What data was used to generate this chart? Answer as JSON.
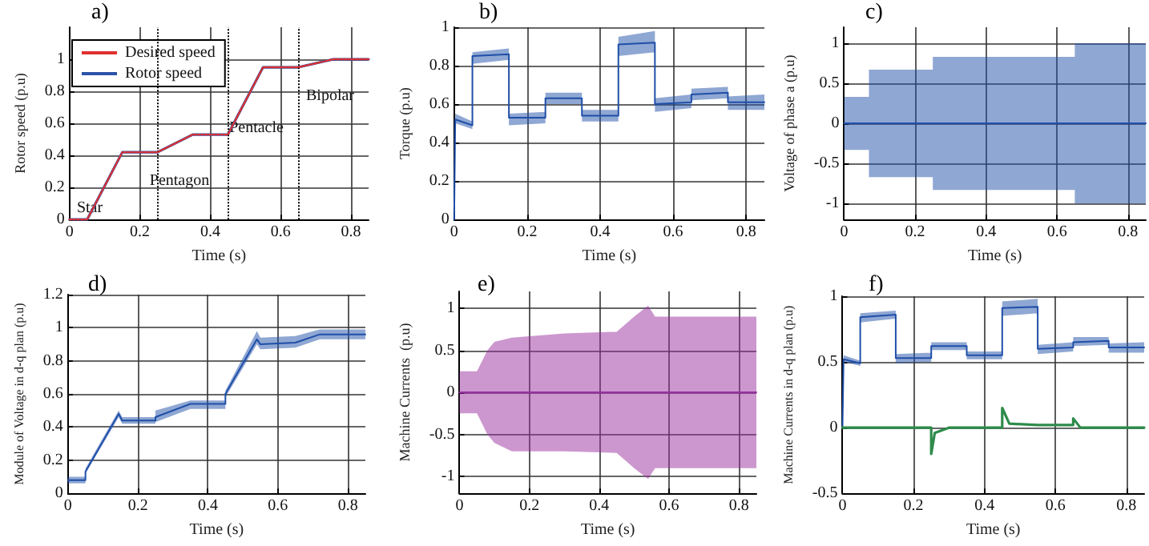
{
  "chart_data": [
    {
      "type": "line",
      "title": "a)",
      "xlabel": "Time (s)",
      "ylabel": "Rotor speed (p.u)",
      "xlim": [
        0,
        0.85
      ],
      "xticks": [
        0,
        0.2,
        0.4,
        0.6,
        0.8
      ],
      "ylim": [
        0,
        1.2
      ],
      "yticks": [
        0,
        0.2,
        0.4,
        0.6,
        0.8,
        1
      ],
      "grid": true,
      "legend": "top left",
      "series": [
        {
          "name": "Desired speed",
          "color": "#e03030",
          "line_style": "dotted",
          "x": [
            0,
            0.05,
            0.15,
            0.25,
            0.35,
            0.45,
            0.55,
            0.65,
            0.75,
            0.85
          ],
          "values": [
            0,
            0,
            0.42,
            0.42,
            0.53,
            0.53,
            0.95,
            0.95,
            1,
            1
          ]
        },
        {
          "name": "Rotor speed",
          "color": "#2a52a8",
          "line_style": "solid",
          "x": [
            0,
            0.05,
            0.15,
            0.25,
            0.35,
            0.45,
            0.55,
            0.65,
            0.75,
            0.85
          ],
          "values": [
            0,
            0,
            0.42,
            0.42,
            0.53,
            0.53,
            0.95,
            0.95,
            1,
            1
          ]
        }
      ],
      "ref_lines": [
        {
          "axis": "x",
          "value": 0.25,
          "color": "#000000",
          "line_style": "dotted"
        },
        {
          "axis": "x",
          "value": 0.45,
          "color": "#000000",
          "line_style": "dotted"
        },
        {
          "axis": "x",
          "value": 0.65,
          "color": "#000000",
          "line_style": "dotted"
        }
      ],
      "annotations": [
        "Star",
        "Pentagon",
        "Pentacle",
        "Bipolar"
      ]
    },
    {
      "type": "line",
      "title": "b)",
      "xlabel": "Time (s)",
      "ylabel": "Torque (p.u)",
      "xlim": [
        0,
        0.85
      ],
      "xticks": [
        0,
        0.2,
        0.4,
        0.6,
        0.8
      ],
      "ylim": [
        0,
        1
      ],
      "yticks": [
        0,
        0.2,
        0.4,
        0.6,
        0.8,
        1
      ],
      "grid": true,
      "series": [
        {
          "color": "#1f4fa8",
          "x": [
            0,
            0.003,
            0.05,
            0.05,
            0.15,
            0.15,
            0.25,
            0.25,
            0.35,
            0.35,
            0.45,
            0.45,
            0.55,
            0.55,
            0.65,
            0.65,
            0.75,
            0.75,
            0.85
          ],
          "values": [
            0,
            0.52,
            0.49,
            0.85,
            0.86,
            0.53,
            0.53,
            0.63,
            0.63,
            0.54,
            0.54,
            0.91,
            0.92,
            0.6,
            0.61,
            0.65,
            0.66,
            0.61,
            0.61
          ],
          "lower": [
            0,
            0.5,
            0.47,
            0.81,
            0.83,
            0.49,
            0.5,
            0.6,
            0.6,
            0.51,
            0.51,
            0.85,
            0.87,
            0.56,
            0.58,
            0.62,
            0.63,
            0.57,
            0.57
          ],
          "upper": [
            0,
            0.55,
            0.51,
            0.87,
            0.89,
            0.55,
            0.56,
            0.66,
            0.66,
            0.57,
            0.57,
            0.95,
            0.98,
            0.63,
            0.65,
            0.68,
            0.69,
            0.64,
            0.65
          ]
        }
      ]
    },
    {
      "type": "line",
      "title": "c)",
      "xlabel": "Time (s)",
      "ylabel": "Voltage of phase a (p.u)",
      "xlim": [
        0,
        0.85
      ],
      "xticks": [
        0,
        0.2,
        0.4,
        0.6,
        0.8
      ],
      "ylim": [
        -1.2,
        1.2
      ],
      "yticks": [
        -1,
        -0.5,
        0,
        0.5,
        1
      ],
      "grid": true,
      "series": [
        {
          "color": "#1f4fa8",
          "x": [
            0,
            0.07,
            0.07,
            0.25,
            0.25,
            0.65,
            0.65,
            0.85
          ],
          "values": [
            0,
            0,
            0,
            0,
            0,
            0,
            0,
            0
          ],
          "lower": [
            -0.33,
            -0.33,
            -0.67,
            -0.67,
            -0.83,
            -0.83,
            -1,
            -1
          ],
          "upper": [
            0.33,
            0.33,
            0.67,
            0.67,
            0.83,
            0.83,
            1,
            1
          ]
        }
      ]
    },
    {
      "type": "line",
      "title": "d)",
      "xlabel": "Time (s)",
      "ylabel": "Module of Voltage in d-q plan (p.u)",
      "xlim": [
        0,
        0.85
      ],
      "xticks": [
        0,
        0.2,
        0.4,
        0.6,
        0.8
      ],
      "ylim": [
        0,
        1.2
      ],
      "yticks": [
        0,
        0.2,
        0.4,
        0.6,
        0.8,
        1,
        1.2
      ],
      "grid": true,
      "series": [
        {
          "color": "#1f4fa8",
          "x": [
            0,
            0.05,
            0.05,
            0.145,
            0.155,
            0.25,
            0.25,
            0.35,
            0.45,
            0.45,
            0.54,
            0.55,
            0.65,
            0.72,
            0.85
          ],
          "values": [
            0.08,
            0.08,
            0.13,
            0.48,
            0.44,
            0.44,
            0.46,
            0.54,
            0.54,
            0.6,
            0.93,
            0.9,
            0.91,
            0.96,
            0.96
          ],
          "lower": [
            0.06,
            0.06,
            0.12,
            0.46,
            0.42,
            0.42,
            0.43,
            0.51,
            0.51,
            0.58,
            0.9,
            0.87,
            0.88,
            0.93,
            0.93
          ],
          "upper": [
            0.1,
            0.1,
            0.15,
            0.5,
            0.46,
            0.46,
            0.5,
            0.56,
            0.56,
            0.62,
            0.98,
            0.94,
            0.95,
            0.99,
            0.99
          ]
        }
      ]
    },
    {
      "type": "line",
      "title": "e)",
      "xlabel": "Time (s)",
      "ylabel": "Machine Currents  (p.u)",
      "xlim": [
        0,
        0.85
      ],
      "xticks": [
        0,
        0.2,
        0.4,
        0.6,
        0.8
      ],
      "ylim": [
        -1.2,
        1.2
      ],
      "yticks": [
        -1,
        -0.5,
        0,
        0.5,
        1
      ],
      "grid": true,
      "series": [
        {
          "color": "#9a2fa0",
          "x": [
            0,
            0.05,
            0.08,
            0.1,
            0.15,
            0.3,
            0.45,
            0.5,
            0.54,
            0.56,
            0.85
          ],
          "values": [
            0,
            0,
            0,
            0,
            0,
            0,
            0,
            0,
            0,
            0,
            0
          ],
          "lower": [
            -0.25,
            -0.25,
            -0.5,
            -0.6,
            -0.7,
            -0.7,
            -0.72,
            -0.9,
            -1.03,
            -0.9,
            -0.9
          ],
          "upper": [
            0.25,
            0.25,
            0.5,
            0.6,
            0.65,
            0.7,
            0.72,
            0.9,
            1.03,
            0.9,
            0.9
          ]
        }
      ]
    },
    {
      "type": "line",
      "title": "f)",
      "xlabel": "Time (s)",
      "ylabel": "Machine Currents in d-q plan (p.u)",
      "xlim": [
        0,
        0.85
      ],
      "xticks": [
        0,
        0.2,
        0.4,
        0.6,
        0.8
      ],
      "ylim": [
        -0.5,
        1
      ],
      "yticks": [
        -0.5,
        0,
        0.5,
        1
      ],
      "grid": true,
      "series": [
        {
          "color": "#1f4fa8",
          "x": [
            0,
            0.003,
            0.05,
            0.05,
            0.15,
            0.15,
            0.25,
            0.25,
            0.35,
            0.35,
            0.45,
            0.45,
            0.55,
            0.55,
            0.65,
            0.65,
            0.75,
            0.75,
            0.85
          ],
          "values": [
            0,
            0.52,
            0.49,
            0.84,
            0.86,
            0.53,
            0.53,
            0.62,
            0.62,
            0.55,
            0.55,
            0.91,
            0.92,
            0.6,
            0.61,
            0.65,
            0.66,
            0.61,
            0.61
          ],
          "lower": [
            0,
            0.5,
            0.47,
            0.8,
            0.83,
            0.49,
            0.5,
            0.59,
            0.59,
            0.52,
            0.52,
            0.85,
            0.87,
            0.56,
            0.58,
            0.62,
            0.63,
            0.57,
            0.57
          ],
          "upper": [
            0,
            0.55,
            0.51,
            0.87,
            0.89,
            0.56,
            0.57,
            0.65,
            0.65,
            0.58,
            0.58,
            0.96,
            0.98,
            0.63,
            0.65,
            0.69,
            0.69,
            0.64,
            0.65
          ]
        },
        {
          "color": "#2e8b4a",
          "x": [
            0,
            0.25,
            0.25,
            0.26,
            0.3,
            0.45,
            0.45,
            0.47,
            0.55,
            0.65,
            0.65,
            0.67,
            0.85
          ],
          "values": [
            0,
            0,
            -0.2,
            -0.04,
            0,
            0,
            0.15,
            0.03,
            0.02,
            0.02,
            0.07,
            0,
            0
          ]
        }
      ]
    }
  ]
}
